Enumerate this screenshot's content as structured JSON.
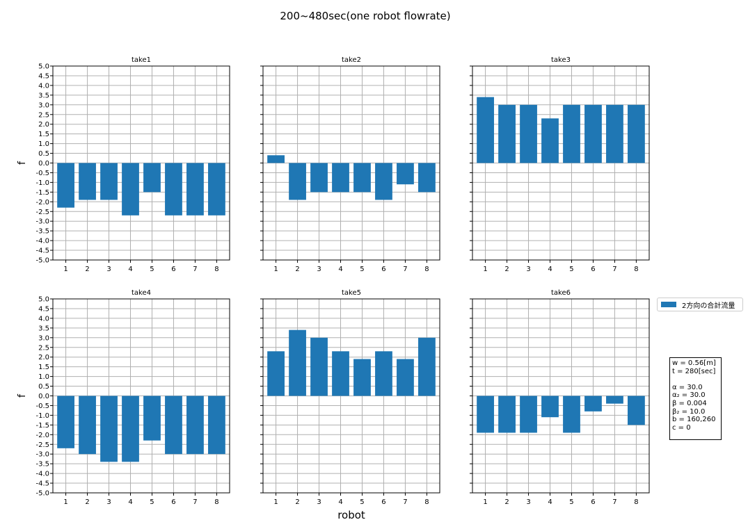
{
  "figure": {
    "suptitle": "200~480sec(one robot flowrate)"
  },
  "legend": {
    "label": "2方向の合計流量",
    "color": "#1f77b4"
  },
  "params": {
    "lines_a": [
      "w = 0.56[m]",
      "t = 280[sec]"
    ],
    "lines_b": [
      "α = 30.0",
      "α₂ = 30.0",
      "β = 0.004",
      "β₂ = 10.0",
      "b = 160,260",
      "c = 0"
    ]
  },
  "chart_data": [
    {
      "type": "bar",
      "title": "take1",
      "xlabel": "",
      "ylabel": "f",
      "categories": [
        "1",
        "2",
        "3",
        "4",
        "5",
        "6",
        "7",
        "8"
      ],
      "values": [
        -2.3,
        -1.9,
        -1.9,
        -2.7,
        -1.5,
        -2.7,
        -2.7,
        -2.7
      ],
      "ylim": [
        -5.0,
        5.0
      ],
      "yticks": [
        "5.0",
        "4.5",
        "4.0",
        "3.5",
        "3.0",
        "2.5",
        "2.0",
        "1.5",
        "1.0",
        "0.5",
        "0.0",
        "-0.5",
        "-1.0",
        "-1.5",
        "-2.0",
        "-2.5",
        "-3.0",
        "-3.5",
        "-4.0",
        "-4.5",
        "-5.0"
      ],
      "grid": true
    },
    {
      "type": "bar",
      "title": "take2",
      "xlabel": "",
      "ylabel": "",
      "categories": [
        "1",
        "2",
        "3",
        "4",
        "5",
        "6",
        "7",
        "8"
      ],
      "values": [
        0.4,
        -1.9,
        -1.5,
        -1.5,
        -1.5,
        -1.9,
        -1.1,
        -1.5
      ],
      "ylim": [
        -5.0,
        5.0
      ],
      "yticks": [],
      "grid": true
    },
    {
      "type": "bar",
      "title": "take3",
      "xlabel": "",
      "ylabel": "",
      "categories": [
        "1",
        "2",
        "3",
        "4",
        "5",
        "6",
        "7",
        "8"
      ],
      "values": [
        3.4,
        3.0,
        3.0,
        2.3,
        3.0,
        3.0,
        3.0,
        3.0
      ],
      "ylim": [
        -5.0,
        5.0
      ],
      "yticks": [],
      "grid": true
    },
    {
      "type": "bar",
      "title": "take4",
      "xlabel": "",
      "ylabel": "f",
      "categories": [
        "1",
        "2",
        "3",
        "4",
        "5",
        "6",
        "7",
        "8"
      ],
      "values": [
        -2.7,
        -3.0,
        -3.4,
        -3.4,
        -2.3,
        -3.0,
        -3.0,
        -3.0
      ],
      "ylim": [
        -5.0,
        5.0
      ],
      "yticks": [
        "5.0",
        "4.5",
        "4.0",
        "3.5",
        "3.0",
        "2.5",
        "2.0",
        "1.5",
        "1.0",
        "0.5",
        "0.0",
        "-0.5",
        "-1.0",
        "-1.5",
        "-2.0",
        "-2.5",
        "-3.0",
        "-3.5",
        "-4.0",
        "-4.5",
        "-5.0"
      ],
      "grid": true
    },
    {
      "type": "bar",
      "title": "take5",
      "xlabel": "robot",
      "ylabel": "",
      "categories": [
        "1",
        "2",
        "3",
        "4",
        "5",
        "6",
        "7",
        "8"
      ],
      "values": [
        2.3,
        3.4,
        3.0,
        2.3,
        1.9,
        2.3,
        1.9,
        3.0
      ],
      "ylim": [
        -5.0,
        5.0
      ],
      "yticks": [],
      "grid": true
    },
    {
      "type": "bar",
      "title": "take6",
      "xlabel": "",
      "ylabel": "",
      "categories": [
        "1",
        "2",
        "3",
        "4",
        "5",
        "6",
        "7",
        "8"
      ],
      "values": [
        -1.9,
        -1.9,
        -1.9,
        -1.1,
        -1.9,
        -0.8,
        -0.4,
        -1.5
      ],
      "ylim": [
        -5.0,
        5.0
      ],
      "yticks": [],
      "grid": true
    }
  ]
}
